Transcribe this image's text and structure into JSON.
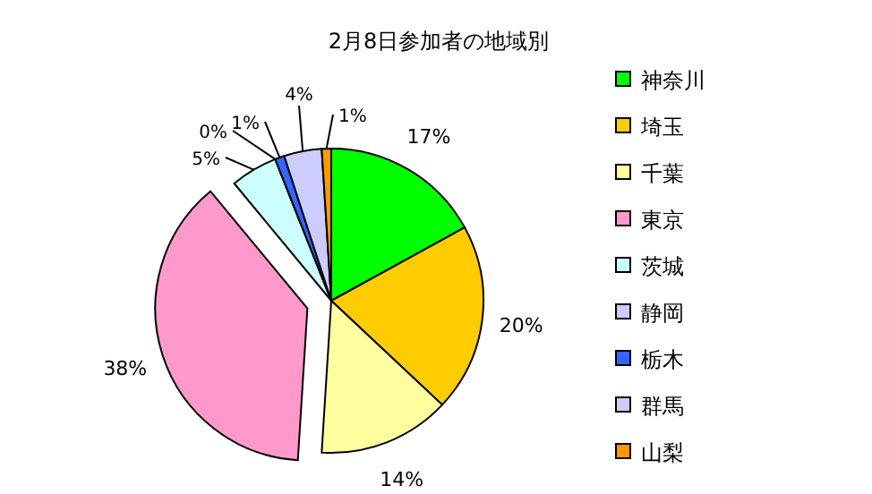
{
  "chart_data": {
    "type": "pie",
    "title": "2月8日参加者の地域別",
    "categories": [
      "神奈川",
      "埼玉",
      "千葉",
      "東京",
      "茨城",
      "静岡",
      "栃木",
      "群馬",
      "山梨"
    ],
    "values": [
      17,
      20,
      14,
      38,
      5,
      0,
      1,
      4,
      1
    ],
    "colors": [
      "#00ff00",
      "#ffcc00",
      "#ffffa0",
      "#ff99cc",
      "#ccffff",
      "#ccccff",
      "#3366ff",
      "#ccccff",
      "#ff9900"
    ],
    "value_labels": [
      "17%",
      "20%",
      "14%",
      "38%",
      "5%",
      "0%",
      "1%",
      "4%",
      "1%"
    ],
    "legend": "right"
  }
}
